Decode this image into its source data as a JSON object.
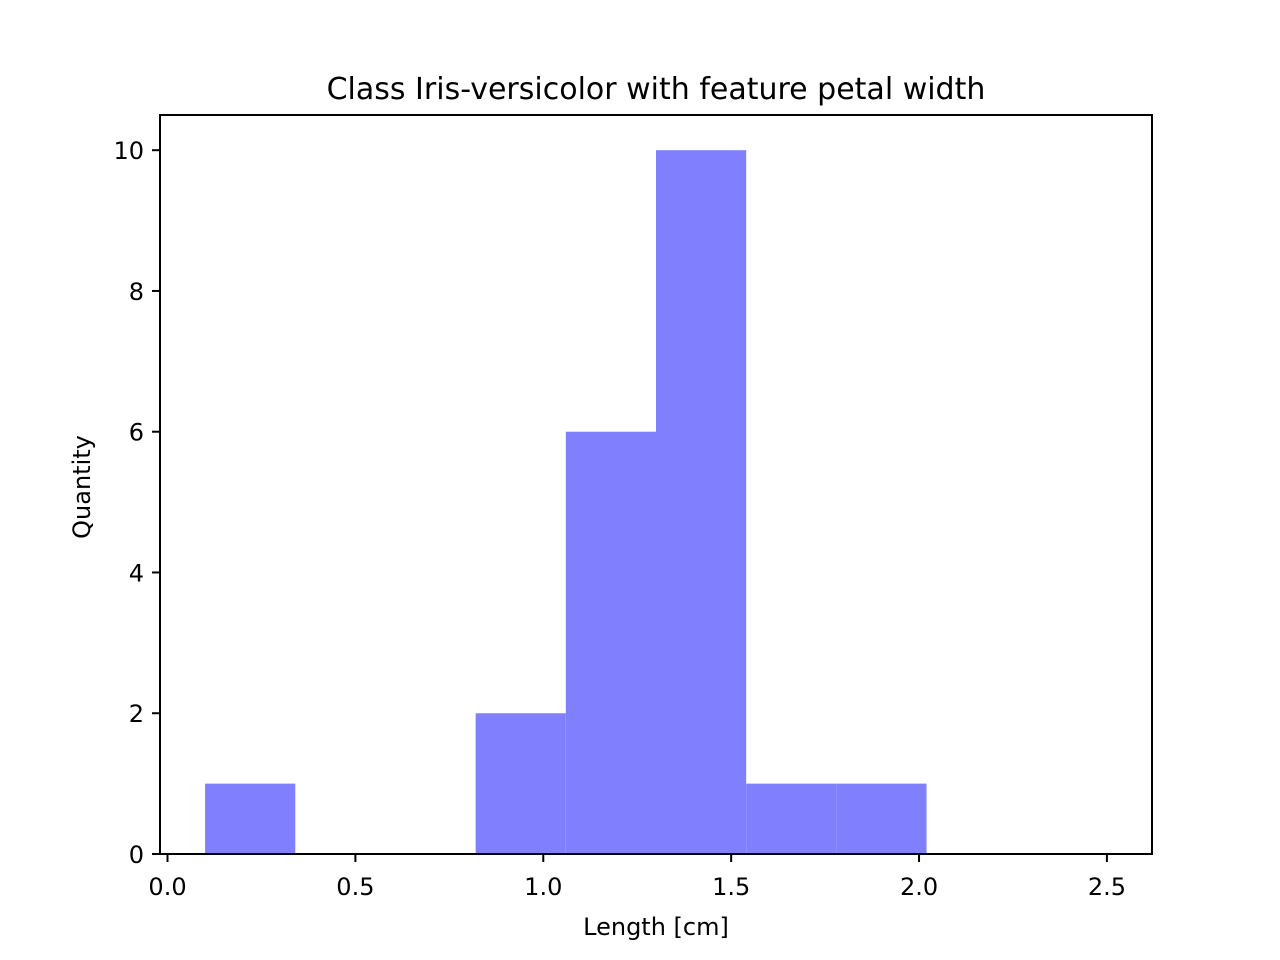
{
  "chart_data": {
    "type": "bar",
    "title": "Class Iris-versicolor with feature petal width",
    "xlabel": "Length [cm]",
    "ylabel": "Quantity",
    "xlim": [
      -0.02,
      2.62
    ],
    "ylim": [
      0,
      10.5
    ],
    "x_ticks": [
      "0.0",
      "0.5",
      "1.0",
      "1.5",
      "2.0",
      "2.5"
    ],
    "y_ticks": [
      "0",
      "2",
      "4",
      "6",
      "8",
      "10"
    ],
    "bin_edges": [
      0.1,
      0.34,
      0.58,
      0.82,
      1.06,
      1.3,
      1.54,
      1.78,
      2.02
    ],
    "values": [
      1,
      0,
      0,
      2,
      6,
      10,
      1,
      1
    ],
    "bar_color": "#8080ff",
    "grid": false,
    "legend": "none"
  }
}
